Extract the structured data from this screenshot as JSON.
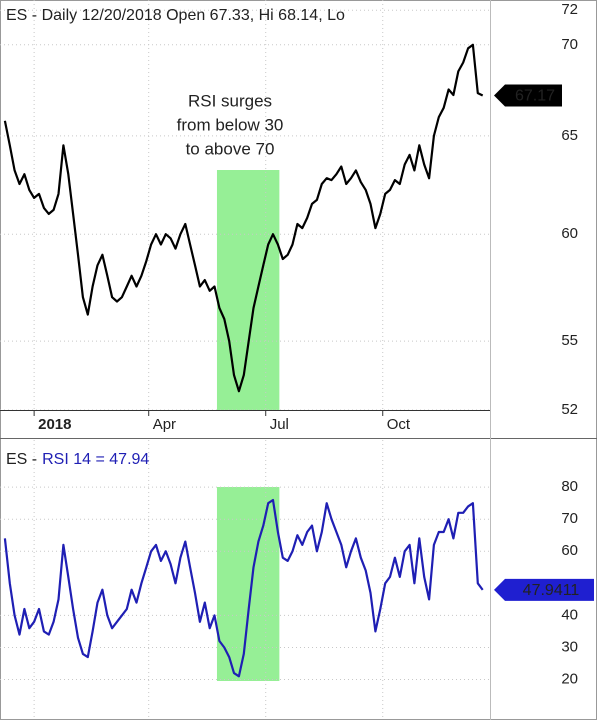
{
  "chart_data": [
    {
      "type": "line",
      "title": "ES - Daily 12/20/2018 Open 67.33, Hi 68.14, Lo",
      "annotation": [
        "RSI surges",
        "from below 30",
        "to above 70"
      ],
      "annotation_color": "#2e9e2e",
      "shaded_range": [
        43.5,
        56.3
      ],
      "shade_color": "#90ee90",
      "log_scale": true,
      "grid": true,
      "xlim": [
        -1,
        99.5
      ],
      "xticks": [
        {
          "value": 6,
          "label": "2018"
        },
        {
          "value": 29.5,
          "label": "Apr"
        },
        {
          "value": 53.5,
          "label": "Jul"
        },
        {
          "value": 77.5,
          "label": "Oct"
        }
      ],
      "ylim": [
        52,
        72.6
      ],
      "yticks": [
        52,
        55,
        60,
        65,
        70,
        72
      ],
      "series": [
        {
          "color": "#000000",
          "tag_color": "#000000",
          "values": [
            65.8,
            64.5,
            63.2,
            62.5,
            63,
            62.2,
            61.8,
            62,
            61.3,
            61,
            61.2,
            62,
            64.5,
            63,
            61,
            59,
            57,
            56.2,
            57.5,
            58.5,
            59,
            58,
            57,
            56.8,
            57,
            57.5,
            58,
            57.5,
            58,
            58.7,
            59.5,
            60,
            59.5,
            60,
            59.8,
            59.3,
            60,
            60.5,
            59.5,
            58.5,
            57.5,
            57.8,
            57.3,
            57.5,
            56.5,
            56,
            55,
            53.5,
            52.8,
            53.5,
            55,
            56.5,
            57.5,
            58.5,
            59.5,
            60,
            59.5,
            58.8,
            59,
            59.5,
            60.5,
            60.3,
            60.8,
            61.5,
            61.7,
            62.5,
            62.8,
            62.7,
            63,
            63.4,
            62.5,
            62.8,
            63.2,
            62.6,
            62.2,
            61.5,
            60.3,
            61,
            62,
            62.2,
            62.7,
            62.5,
            63.5,
            64,
            63.2,
            64.5,
            63.5,
            62.8,
            65,
            66,
            66.5,
            67.5,
            67.2,
            68.5,
            69,
            69.8,
            70,
            67.3,
            67.17
          ]
        }
      ]
    },
    {
      "type": "line",
      "prefix": "ES -",
      "title": "RSI 14 = 47.94",
      "title_color": "#1f1fb4",
      "shaded_range": [
        43.5,
        56.3
      ],
      "shade_color": "#90ee90",
      "grid": true,
      "xlim": [
        -1,
        99.5
      ],
      "ylim": [
        8,
        94.7
      ],
      "yticks": [
        20,
        30,
        40,
        60,
        70,
        80
      ],
      "series": [
        {
          "color": "#1f1fb4",
          "tag_color": "#1f1fd0",
          "values": [
            64,
            50,
            40,
            34,
            42,
            36,
            38,
            42,
            35,
            34,
            38,
            45,
            62,
            52,
            42,
            33,
            28,
            27,
            35,
            44,
            48,
            40,
            36,
            38,
            40,
            42,
            48,
            44,
            50,
            55,
            60,
            62,
            57,
            60,
            56,
            50,
            58,
            63,
            55,
            47,
            38,
            44,
            36,
            40,
            32,
            30,
            27,
            22,
            21,
            28,
            42,
            55,
            63,
            68,
            75,
            76,
            66,
            58,
            57,
            60,
            65,
            62,
            66,
            68,
            60,
            66,
            75,
            70,
            66,
            62,
            55,
            60,
            64,
            58,
            54,
            47,
            35,
            42,
            50,
            52,
            58,
            52,
            60,
            62,
            50,
            64,
            52,
            45,
            62,
            66,
            66,
            70,
            64,
            72,
            72,
            74,
            75,
            50,
            47.9411
          ]
        }
      ]
    }
  ]
}
